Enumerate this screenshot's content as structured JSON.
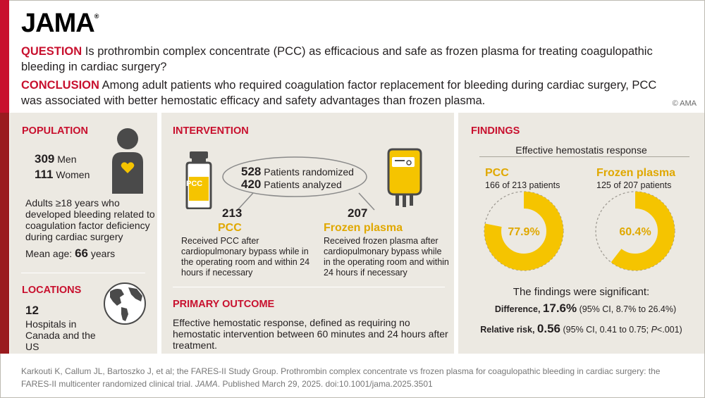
{
  "brand": {
    "logo": "JAMA",
    "registered": "®"
  },
  "question": {
    "label": "QUESTION",
    "text": "Is prothrombin complex concentrate (PCC) as efficacious and safe as frozen plasma for treating coagulopathic bleeding in cardiac surgery?"
  },
  "conclusion": {
    "label": "CONCLUSION",
    "text": "Among adult patients who required coagulation factor replacement for bleeding during cardiac surgery, PCC was associated with better hemostatic efficacy and safety advantages than frozen plasma."
  },
  "copyright": "© AMA",
  "population": {
    "heading": "POPULATION",
    "men_count": "309",
    "men_label": "Men",
    "women_count": "111",
    "women_label": "Women",
    "description": "Adults ≥18 years who developed bleeding related to coagulation factor deficiency during cardiac surgery",
    "mean_age_label": "Mean age:",
    "mean_age_value": "66",
    "mean_age_unit": "years"
  },
  "locations": {
    "heading": "LOCATIONS",
    "count": "12",
    "description": "Hospitals in Canada and the US"
  },
  "intervention": {
    "heading": "INTERVENTION",
    "randomized_count": "528",
    "randomized_label": "Patients randomized",
    "analyzed_count": "420",
    "analyzed_label": "Patients analyzed",
    "vial_label": "PCC",
    "arm1": {
      "count": "213",
      "name": "PCC",
      "description": "Received PCC after cardiopulmonary bypass while in the operating room and within 24 hours if necessary"
    },
    "arm2": {
      "count": "207",
      "name": "Frozen plasma",
      "description": "Received frozen plasma after cardiopulmonary bypass while in the operating room and within 24 hours if necessary"
    }
  },
  "primary_outcome": {
    "heading": "PRIMARY OUTCOME",
    "text": "Effective hemostatic response, defined as requiring no hemostatic intervention between 60 minutes and 24 hours after treatment."
  },
  "findings": {
    "heading": "FINDINGS",
    "subtitle": "Effective hemostatis response",
    "significance": "The findings were significant:",
    "difference_label": "Difference,",
    "difference_value": "17.6%",
    "difference_ci": "(95% CI, 8.7% to 26.4%)",
    "rr_label": "Relative risk,",
    "rr_value": "0.56",
    "rr_ci_prefix": "(95% CI, 0.41 to 0.75;",
    "rr_p_label": "P",
    "rr_p_value": "<.001)"
  },
  "chart_data": {
    "type": "pie",
    "title": "Effective hemostatis response",
    "series": [
      {
        "name": "PCC",
        "detail": "166 of 213 patients",
        "percent": 77.9,
        "label": "77.9%"
      },
      {
        "name": "Frozen plasma",
        "detail": "125 of 207 patients",
        "percent": 60.4,
        "label": "60.4%"
      }
    ],
    "color": "#f5c400"
  },
  "citation": {
    "text": "Karkouti K, Callum JL, Bartoszko J, et al; the FARES-II Study Group. Prothrombin complex concentrate vs frozen plasma for coagulopathic bleeding in cardiac surgery: the FARES-II multicenter randomized clinical trial.",
    "journal": "JAMA",
    "published": ". Published March 29, 2025. doi:10.1001/jama.2025.3501"
  },
  "colors": {
    "accent": "#c8102e",
    "dark_red": "#9a1b1f",
    "panel": "#ece9e2",
    "gold": "#f5c400",
    "gold_text": "#e0a800"
  }
}
